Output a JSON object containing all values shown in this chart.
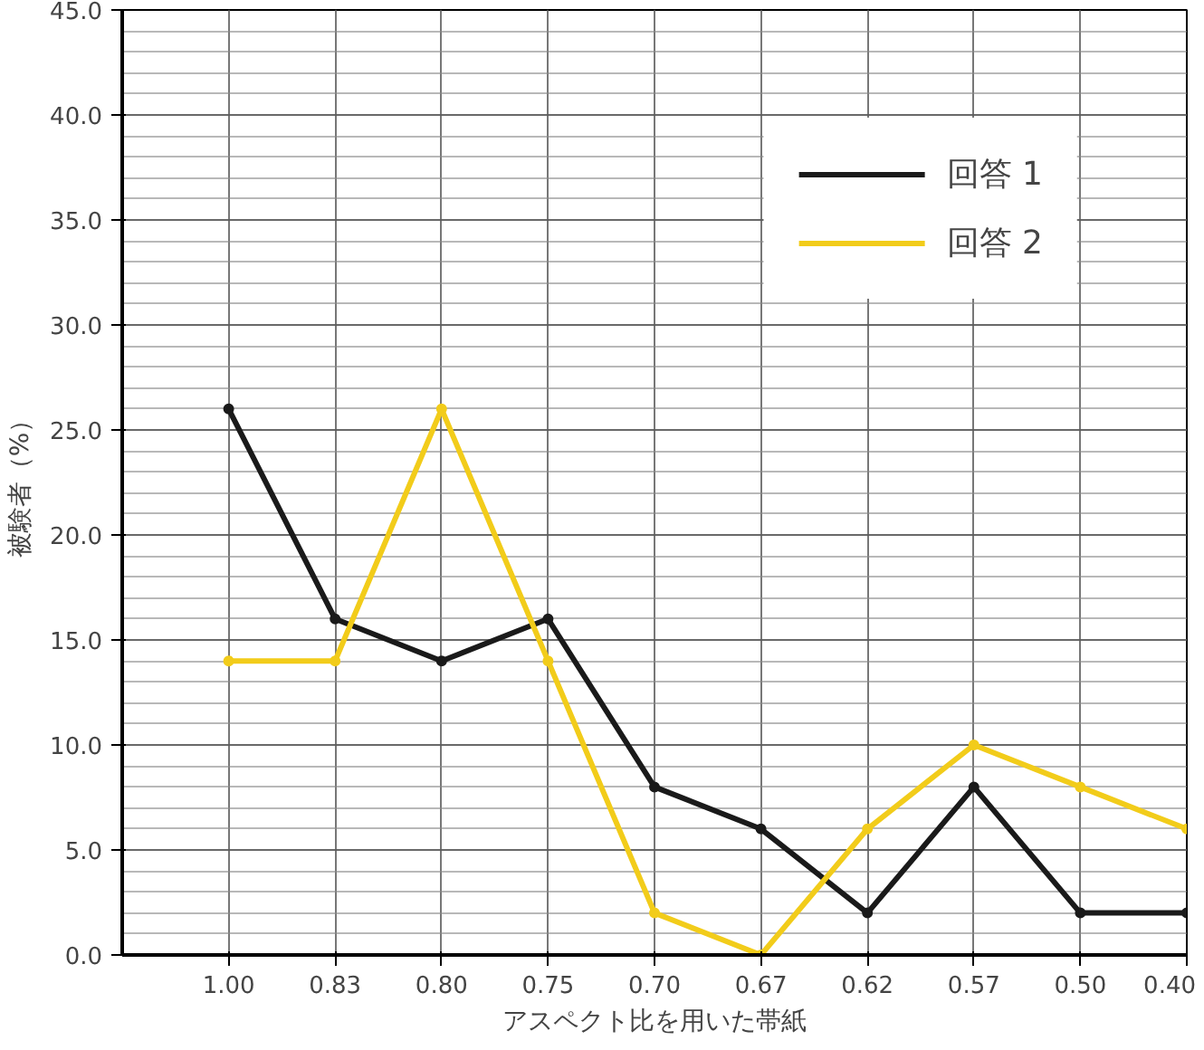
{
  "chart_data": {
    "type": "line",
    "xlabel": "アスペクト比を用いた帯紙",
    "ylabel": "被験者（%）",
    "categories": [
      "1.00",
      "0.83",
      "0.80",
      "0.75",
      "0.70",
      "0.67",
      "0.62",
      "0.57",
      "0.50",
      "0.40"
    ],
    "series": [
      {
        "name": "回答 1",
        "color": "#1a1a1a",
        "values": [
          26,
          16,
          14,
          16,
          8,
          6,
          2,
          8,
          2,
          2
        ]
      },
      {
        "name": "回答 2",
        "color": "#f2cc1a",
        "values": [
          14,
          14,
          26,
          14,
          2,
          0,
          6,
          10,
          8,
          6
        ]
      }
    ],
    "ylim": [
      0,
      45
    ],
    "yticks": [
      {
        "value": 0,
        "label": "0.0"
      },
      {
        "value": 5,
        "label": "5.0"
      },
      {
        "value": 10,
        "label": "10.0"
      },
      {
        "value": 15,
        "label": "15.0"
      },
      {
        "value": 20,
        "label": "20.0"
      },
      {
        "value": 25,
        "label": "25.0"
      },
      {
        "value": 30,
        "label": "30.0"
      },
      {
        "value": 35,
        "label": "35.0"
      },
      {
        "value": 40,
        "label": "40.0"
      },
      {
        "value": 45,
        "label": "45.0"
      }
    ],
    "grid": true,
    "legend": "top right",
    "marker": "circle",
    "line_style": "solid"
  }
}
